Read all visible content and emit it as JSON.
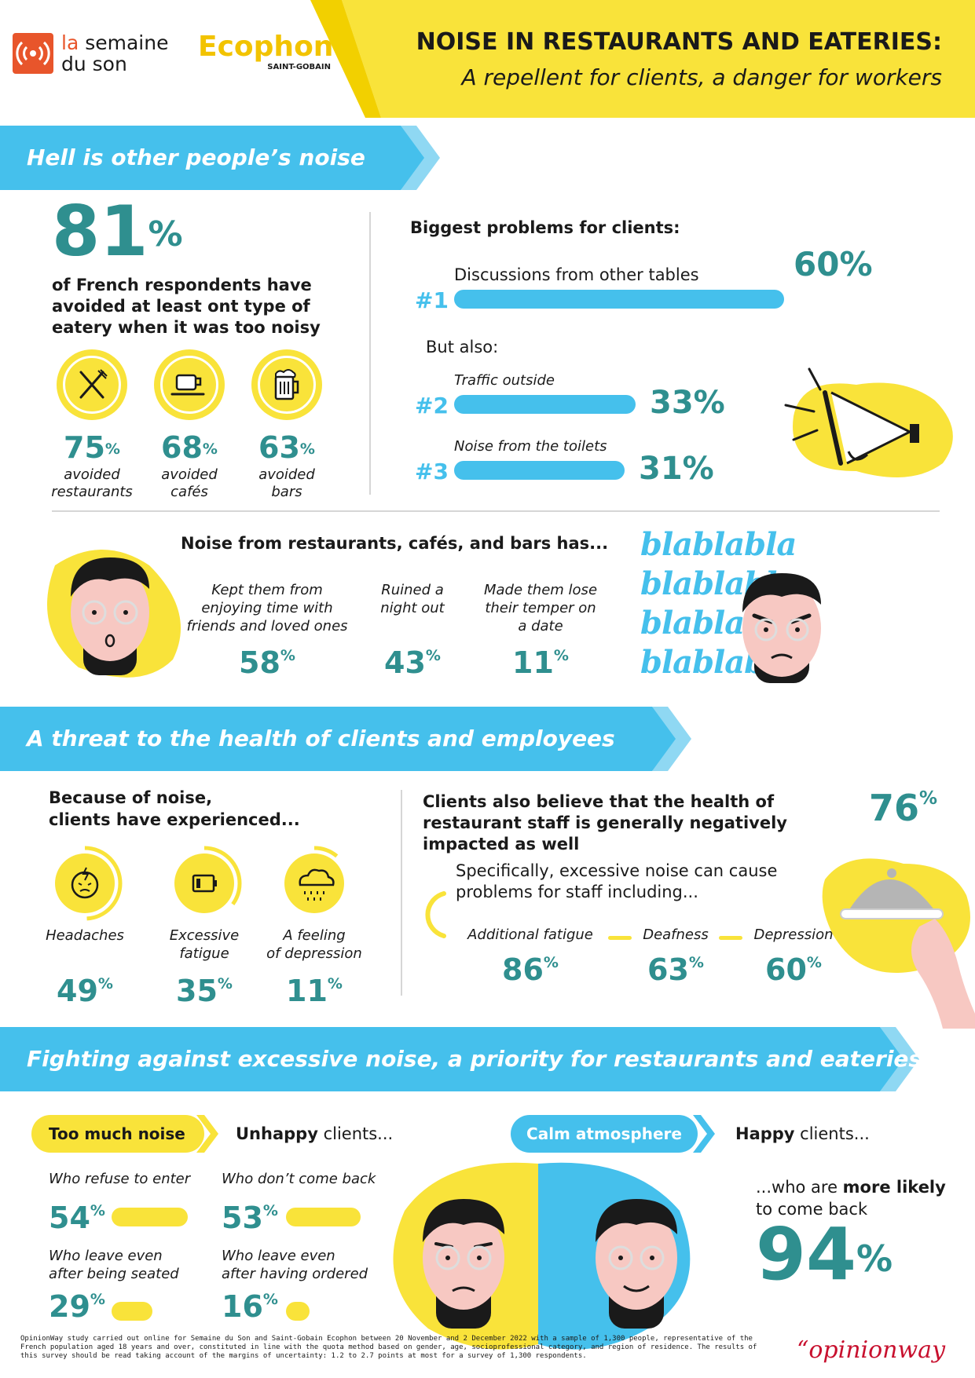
{
  "header": {
    "logo1_line1": "la semaine",
    "logo1_line2": "du son",
    "logo2_name": "Ecophon",
    "logo2_sub": "SAINT-GOBAIN",
    "title": "NOISE IN RESTAURANTS AND EATERIES:",
    "subtitle": "A repellent for clients, a danger for workers"
  },
  "colors": {
    "yellow": "#f9e33a",
    "blue": "#45c0ec",
    "teal": "#2f8f8f",
    "orange": "#e8552b"
  },
  "section1": {
    "banner": "Hell is other people’s noise",
    "big_value": "81",
    "big_unit": "%",
    "big_text": "of French respondents have avoided at least ont type of eatery when it was too noisy",
    "avoided": [
      {
        "icon": "fork-knife-icon",
        "value": "75",
        "unit": "%",
        "label1": "avoided",
        "label2": "restaurants"
      },
      {
        "icon": "coffee-cup-icon",
        "value": "68",
        "unit": "%",
        "label1": "avoided",
        "label2": "cafés"
      },
      {
        "icon": "beer-mug-icon",
        "value": "63",
        "unit": "%",
        "label1": "avoided",
        "label2": "bars"
      }
    ],
    "problems_title": "Biggest problems for clients:",
    "problem1": {
      "rank": "#1",
      "label": "Discussions from other tables",
      "value": "60%",
      "fraction": 0.6
    },
    "but_also": "But also:",
    "problem2": {
      "rank": "#2",
      "label": "Traffic outside",
      "value": "33%",
      "fraction": 0.33
    },
    "problem3": {
      "rank": "#3",
      "label": "Noise from the toilets",
      "value": "31%",
      "fraction": 0.31
    }
  },
  "section1b": {
    "title": "Noise from restaurants, cafés, and bars has...",
    "items": [
      {
        "label": "Kept them from enjoying time with friends and loved ones",
        "value": "58",
        "unit": "%"
      },
      {
        "label": "Ruined a night out",
        "value": "43",
        "unit": "%"
      },
      {
        "label": "Made them lose their temper on a date",
        "value": "11",
        "unit": "%"
      }
    ],
    "blabla_word": "blablabla"
  },
  "section2": {
    "banner": "A threat to the health of clients and employees",
    "clients_title_1": "Because of noise,",
    "clients_title_2": "clients have experienced...",
    "clients_items": [
      {
        "icon": "headache-icon",
        "label1": "Headaches",
        "label2": "",
        "value": "49",
        "unit": "%",
        "fraction": 0.49
      },
      {
        "icon": "low-battery-icon",
        "label1": "Excessive",
        "label2": "fatigue",
        "value": "35",
        "unit": "%",
        "fraction": 0.35
      },
      {
        "icon": "rain-cloud-icon",
        "label1": "A feeling",
        "label2": "of depression",
        "value": "11",
        "unit": "%",
        "fraction": 0.11
      }
    ],
    "staff_title": "Clients also believe that the health of restaurant staff is generally negatively impacted as well",
    "staff_value": "76",
    "staff_unit": "%",
    "staff_sub": "Specifically, excessive noise can cause problems for staff including...",
    "staff_items": [
      {
        "label": "Additional fatigue",
        "value": "86",
        "unit": "%"
      },
      {
        "label": "Deafness",
        "value": "63",
        "unit": "%"
      },
      {
        "label": "Depression",
        "value": "60",
        "unit": "%"
      }
    ]
  },
  "section3": {
    "banner": "Fighting against excessive noise, a priority for restaurants and eateries",
    "pill_noise": "Too much noise",
    "unhappy_bold": "Unhappy",
    "unhappy_rest": " clients...",
    "unhappy_items": [
      {
        "label1": "Who refuse to enter",
        "label2": "",
        "value": "54",
        "unit": "%",
        "fraction": 0.54
      },
      {
        "label1": "Who don’t come back",
        "label2": "",
        "value": "53",
        "unit": "%",
        "fraction": 0.53
      },
      {
        "label1": "Who leave even",
        "label2": "after being seated",
        "value": "29",
        "unit": "%",
        "fraction": 0.29
      },
      {
        "label1": "Who leave even",
        "label2": "after having ordered",
        "value": "16",
        "unit": "%",
        "fraction": 0.16
      }
    ],
    "pill_calm": "Calm atmosphere",
    "happy_bold": "Happy",
    "happy_rest": " clients...",
    "likely_pre": "...who are ",
    "likely_bold": "more likely",
    "likely_post": "to come back",
    "likely_value": "94",
    "likely_unit": "%"
  },
  "footer": {
    "note": "OpinionWay study carried out online for Semaine du Son and Saint-Gobain Ecophon between 20 November and 2 December 2022 with a sample of 1,300 people, representative of the French population aged 18 years and over, constituted in line with the quota method based on gender, age, socioprofessional category, and region of residence. The results of this survey should be read taking account of the margins of uncertainty: 1.2 to 2.7 points at most for a survey of 1,300 respondents.",
    "brand": "opinionway",
    "brand_quote": "“"
  }
}
